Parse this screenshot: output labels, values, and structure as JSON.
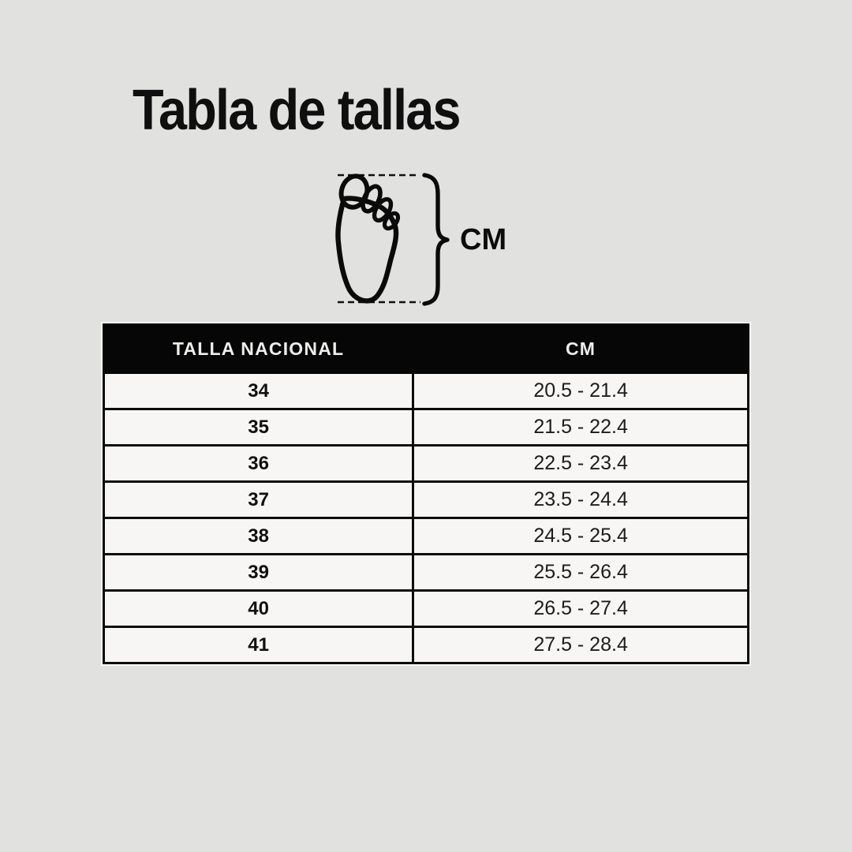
{
  "title": "Tabla de tallas",
  "illustration": {
    "label": "CM",
    "icons": {
      "foot": "foot-sole-outline-icon",
      "brace": "curly-brace-icon",
      "measure_lines": "dashed-measure-lines"
    }
  },
  "table": {
    "headers": [
      "TALLA NACIONAL",
      "CM"
    ],
    "rows": [
      {
        "size": "34",
        "cm": "20.5 - 21.4"
      },
      {
        "size": "35",
        "cm": "21.5 - 22.4"
      },
      {
        "size": "36",
        "cm": "22.5 - 23.4"
      },
      {
        "size": "37",
        "cm": "23.5 - 24.4"
      },
      {
        "size": "38",
        "cm": "24.5 - 25.4"
      },
      {
        "size": "39",
        "cm": "25.5 - 26.4"
      },
      {
        "size": "40",
        "cm": "26.5 - 27.4"
      },
      {
        "size": "41",
        "cm": "27.5 - 28.4"
      }
    ]
  },
  "chart_data": {
    "type": "table",
    "title": "Tabla de tallas",
    "columns": [
      "TALLA NACIONAL",
      "CM"
    ],
    "rows": [
      [
        "34",
        "20.5 - 21.4"
      ],
      [
        "35",
        "21.5 - 22.4"
      ],
      [
        "36",
        "22.5 - 23.4"
      ],
      [
        "37",
        "23.5 - 24.4"
      ],
      [
        "38",
        "24.5 - 25.4"
      ],
      [
        "39",
        "25.5 - 26.4"
      ],
      [
        "40",
        "26.5 - 27.4"
      ],
      [
        "41",
        "27.5 - 28.4"
      ]
    ],
    "units_note": "CM"
  },
  "colors": {
    "background": "#e1e1df",
    "ink": "#0f0f0f",
    "header_bg": "#060606",
    "header_text": "#efedeb",
    "row_bg": "#f7f6f4",
    "border": "#0c0c0c"
  }
}
